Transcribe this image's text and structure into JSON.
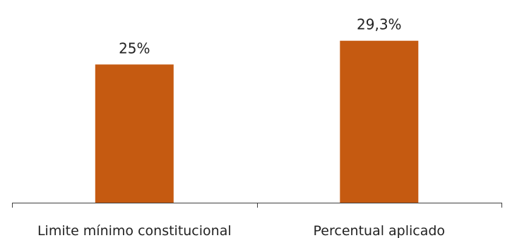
{
  "chart_data": {
    "type": "bar",
    "categories": [
      "Limite mínimo constitucional",
      "Percentual aplicado"
    ],
    "values": [
      25,
      29.3
    ],
    "data_labels": [
      "25%",
      "29,3%"
    ],
    "title": "",
    "xlabel": "",
    "ylabel": "",
    "ylim": [
      0,
      34.5
    ],
    "grid": false,
    "y_axis_visible": false,
    "bar_color": "#C55A11"
  }
}
